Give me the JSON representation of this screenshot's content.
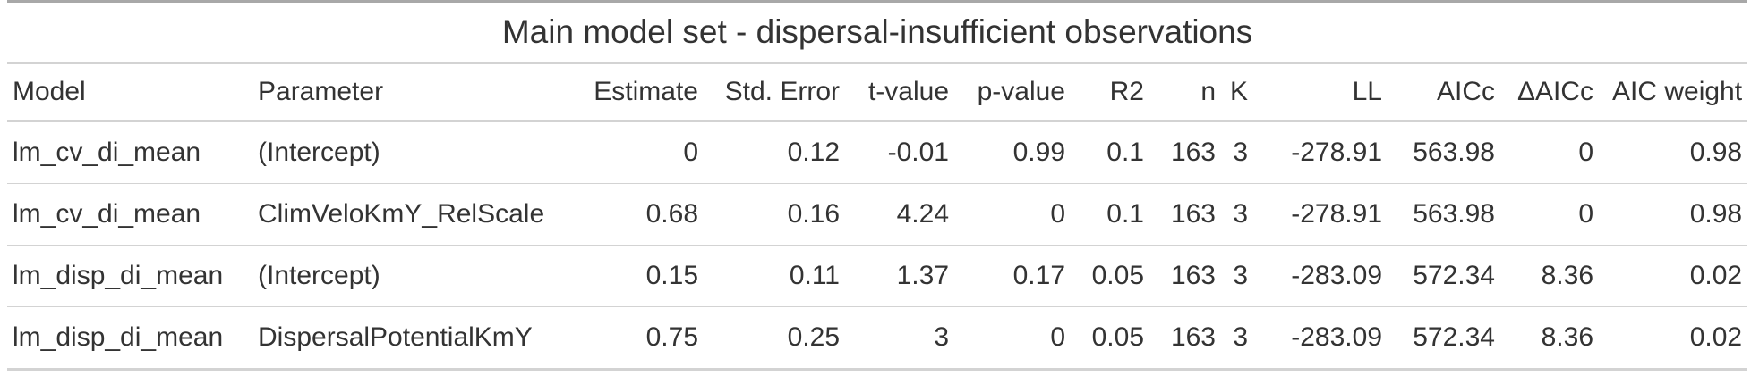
{
  "table": {
    "title": "Main model set - dispersal-insufficient observations",
    "columns": [
      "Model",
      "Parameter",
      "Estimate",
      "Std. Error",
      "t-value",
      "p-value",
      "R2",
      "n",
      "K",
      "LL",
      "AICc",
      "ΔAICc",
      "AIC weight"
    ],
    "rows": [
      [
        "lm_cv_di_mean",
        "(Intercept)",
        "0",
        "0.12",
        "-0.01",
        "0.99",
        "0.1",
        "163",
        "3",
        "-278.91",
        "563.98",
        "0",
        "0.98"
      ],
      [
        "lm_cv_di_mean",
        "ClimVeloKmY_RelScale",
        "0.68",
        "0.16",
        "4.24",
        "0",
        "0.1",
        "163",
        "3",
        "-278.91",
        "563.98",
        "0",
        "0.98"
      ],
      [
        "lm_disp_di_mean",
        "(Intercept)",
        "0.15",
        "0.11",
        "1.37",
        "0.17",
        "0.05",
        "163",
        "3",
        "-283.09",
        "572.34",
        "8.36",
        "0.02"
      ],
      [
        "lm_disp_di_mean",
        "DispersalPotentialKmY",
        "0.75",
        "0.25",
        "3",
        "0",
        "0.05",
        "163",
        "3",
        "-283.09",
        "572.34",
        "8.36",
        "0.02"
      ]
    ]
  }
}
